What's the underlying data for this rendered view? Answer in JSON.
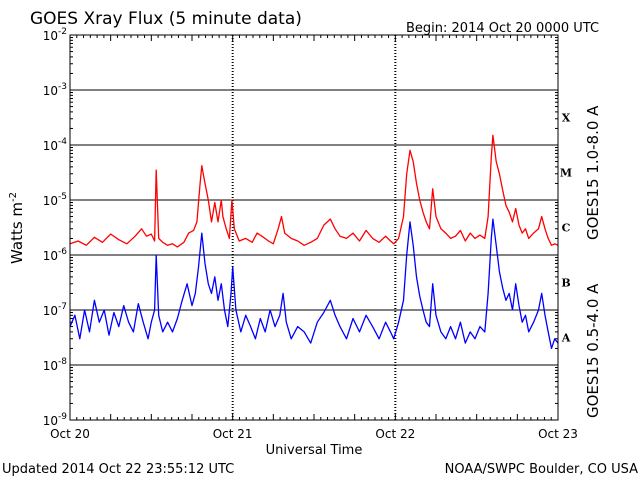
{
  "header": {
    "title": "GOES Xray Flux (5 minute data)",
    "begin": "Begin:  2014 Oct 20 0000 UTC"
  },
  "footer": {
    "updated": "Updated 2014 Oct 22 23:55:12 UTC",
    "source": "NOAA/SWPC Boulder, CO USA"
  },
  "colors": {
    "long": "#ff0000",
    "short": "#0000ff",
    "axis": "#000000"
  },
  "chart_data": {
    "type": "line",
    "title": "GOES Xray Flux (5 minute data)",
    "xlabel": "Universal Time",
    "ylabel": "Watts m",
    "ylabel_sup": "-2",
    "yscale": "log",
    "ylim": [
      1e-09,
      0.01
    ],
    "x_unit": "days since 2014 Oct 20 0000 UTC",
    "xlim": [
      0,
      3
    ],
    "x_ticks": [
      {
        "x": 0,
        "label": "Oct 20"
      },
      {
        "x": 1,
        "label": "Oct 21"
      },
      {
        "x": 2,
        "label": "Oct 22"
      },
      {
        "x": 3,
        "label": "Oct 23"
      }
    ],
    "y_ticks": [
      {
        "exp": -2,
        "base": "10",
        "sup": "-2"
      },
      {
        "exp": -3,
        "base": "10",
        "sup": "-3"
      },
      {
        "exp": -4,
        "base": "10",
        "sup": "-4"
      },
      {
        "exp": -5,
        "base": "10",
        "sup": "-5"
      },
      {
        "exp": -6,
        "base": "10",
        "sup": "-6"
      },
      {
        "exp": -7,
        "base": "10",
        "sup": "-7"
      },
      {
        "exp": -8,
        "base": "10",
        "sup": "-8"
      },
      {
        "exp": -9,
        "base": "10",
        "sup": "-9"
      }
    ],
    "gridlines": [
      -3,
      -4,
      -5,
      -6,
      -7,
      -8
    ],
    "flare_classes": [
      {
        "label": "X",
        "exp": -3.5
      },
      {
        "label": "M",
        "exp": -4.5
      },
      {
        "label": "C",
        "exp": -5.5
      },
      {
        "label": "B",
        "exp": -6.5
      },
      {
        "label": "A",
        "exp": -7.5
      }
    ],
    "series": [
      {
        "name": "GOES15 1.0-8.0 A",
        "color": "#ff0000",
        "points": [
          [
            0.0,
            1.6e-06
          ],
          [
            0.05,
            1.8e-06
          ],
          [
            0.1,
            1.5e-06
          ],
          [
            0.15,
            2.1e-06
          ],
          [
            0.2,
            1.7e-06
          ],
          [
            0.25,
            2.4e-06
          ],
          [
            0.3,
            1.9e-06
          ],
          [
            0.35,
            1.6e-06
          ],
          [
            0.4,
            2.2e-06
          ],
          [
            0.44,
            3e-06
          ],
          [
            0.47,
            2.2e-06
          ],
          [
            0.5,
            2.4e-06
          ],
          [
            0.52,
            1.8e-06
          ],
          [
            0.53,
            3.5e-05
          ],
          [
            0.545,
            2e-06
          ],
          [
            0.57,
            1.7e-06
          ],
          [
            0.6,
            1.5e-06
          ],
          [
            0.63,
            1.6e-06
          ],
          [
            0.66,
            1.4e-06
          ],
          [
            0.7,
            1.7e-06
          ],
          [
            0.73,
            2.5e-06
          ],
          [
            0.76,
            2.8e-06
          ],
          [
            0.78,
            4e-06
          ],
          [
            0.8,
            2e-05
          ],
          [
            0.81,
            4.2e-05
          ],
          [
            0.83,
            2e-05
          ],
          [
            0.85,
            1e-05
          ],
          [
            0.87,
            4e-06
          ],
          [
            0.89,
            9e-06
          ],
          [
            0.91,
            4e-06
          ],
          [
            0.93,
            1e-05
          ],
          [
            0.94,
            5e-06
          ],
          [
            0.96,
            3e-06
          ],
          [
            0.98,
            2e-06
          ],
          [
            0.995,
            1e-05
          ],
          [
            1.01,
            3e-06
          ],
          [
            1.04,
            1.8e-06
          ],
          [
            1.08,
            2e-06
          ],
          [
            1.12,
            1.7e-06
          ],
          [
            1.15,
            2.5e-06
          ],
          [
            1.18,
            2.2e-06
          ],
          [
            1.22,
            1.8e-06
          ],
          [
            1.25,
            1.6e-06
          ],
          [
            1.28,
            3e-06
          ],
          [
            1.3,
            5e-06
          ],
          [
            1.32,
            2.5e-06
          ],
          [
            1.36,
            2e-06
          ],
          [
            1.4,
            1.8e-06
          ],
          [
            1.44,
            1.5e-06
          ],
          [
            1.48,
            1.7e-06
          ],
          [
            1.52,
            2e-06
          ],
          [
            1.56,
            3.5e-06
          ],
          [
            1.6,
            4.5e-06
          ],
          [
            1.63,
            3e-06
          ],
          [
            1.66,
            2.2e-06
          ],
          [
            1.7,
            2e-06
          ],
          [
            1.74,
            2.5e-06
          ],
          [
            1.78,
            1.8e-06
          ],
          [
            1.82,
            2.8e-06
          ],
          [
            1.86,
            2e-06
          ],
          [
            1.9,
            1.7e-06
          ],
          [
            1.94,
            2.2e-06
          ],
          [
            1.97,
            1.8e-06
          ],
          [
            1.99,
            1.6e-06
          ],
          [
            2.02,
            2e-06
          ],
          [
            2.05,
            5e-06
          ],
          [
            2.07,
            3e-05
          ],
          [
            2.09,
            8e-05
          ],
          [
            2.11,
            5e-05
          ],
          [
            2.13,
            2e-05
          ],
          [
            2.15,
            1e-05
          ],
          [
            2.17,
            6e-06
          ],
          [
            2.19,
            4e-06
          ],
          [
            2.21,
            3e-06
          ],
          [
            2.23,
            1.6e-05
          ],
          [
            2.25,
            5e-06
          ],
          [
            2.28,
            3e-06
          ],
          [
            2.31,
            2.5e-06
          ],
          [
            2.34,
            2e-06
          ],
          [
            2.37,
            2.2e-06
          ],
          [
            2.4,
            2.8e-06
          ],
          [
            2.43,
            1.8e-06
          ],
          [
            2.46,
            2.5e-06
          ],
          [
            2.49,
            2e-06
          ],
          [
            2.52,
            2.3e-06
          ],
          [
            2.55,
            2e-06
          ],
          [
            2.57,
            5e-06
          ],
          [
            2.59,
            6e-05
          ],
          [
            2.6,
            0.00015
          ],
          [
            2.62,
            5e-05
          ],
          [
            2.64,
            3e-05
          ],
          [
            2.66,
            1.5e-05
          ],
          [
            2.68,
            8e-06
          ],
          [
            2.7,
            6e-06
          ],
          [
            2.72,
            4e-06
          ],
          [
            2.74,
            7e-06
          ],
          [
            2.76,
            3.5e-06
          ],
          [
            2.78,
            2.5e-06
          ],
          [
            2.8,
            3e-06
          ],
          [
            2.82,
            2e-06
          ],
          [
            2.85,
            2.5e-06
          ],
          [
            2.88,
            3e-06
          ],
          [
            2.9,
            5e-06
          ],
          [
            2.92,
            3e-06
          ],
          [
            2.94,
            2e-06
          ],
          [
            2.96,
            1.5e-06
          ],
          [
            2.98,
            1.6e-06
          ],
          [
            3.0,
            1.5e-06
          ]
        ]
      },
      {
        "name": "GOES15 0.5-4.0 A",
        "color": "#0000ff",
        "points": [
          [
            0.0,
            5e-08
          ],
          [
            0.03,
            8e-08
          ],
          [
            0.06,
            3e-08
          ],
          [
            0.09,
            1e-07
          ],
          [
            0.12,
            4e-08
          ],
          [
            0.15,
            1.5e-07
          ],
          [
            0.18,
            6e-08
          ],
          [
            0.21,
            1e-07
          ],
          [
            0.24,
            3.5e-08
          ],
          [
            0.27,
            9e-08
          ],
          [
            0.3,
            5e-08
          ],
          [
            0.33,
            1.2e-07
          ],
          [
            0.36,
            6e-08
          ],
          [
            0.39,
            4e-08
          ],
          [
            0.42,
            1.3e-07
          ],
          [
            0.45,
            6e-08
          ],
          [
            0.48,
            3e-08
          ],
          [
            0.5,
            6e-08
          ],
          [
            0.52,
            1e-07
          ],
          [
            0.53,
            1e-06
          ],
          [
            0.545,
            8e-08
          ],
          [
            0.57,
            4e-08
          ],
          [
            0.6,
            6e-08
          ],
          [
            0.63,
            4e-08
          ],
          [
            0.66,
            7e-08
          ],
          [
            0.69,
            1.5e-07
          ],
          [
            0.72,
            3e-07
          ],
          [
            0.75,
            1.2e-07
          ],
          [
            0.77,
            2e-07
          ],
          [
            0.79,
            6e-07
          ],
          [
            0.81,
            2.5e-06
          ],
          [
            0.83,
            7e-07
          ],
          [
            0.85,
            3e-07
          ],
          [
            0.87,
            2e-07
          ],
          [
            0.89,
            4e-07
          ],
          [
            0.91,
            1.5e-07
          ],
          [
            0.93,
            3e-07
          ],
          [
            0.95,
            1e-07
          ],
          [
            0.97,
            5e-08
          ],
          [
            0.99,
            2e-07
          ],
          [
            1.0,
            6e-07
          ],
          [
            1.02,
            1e-07
          ],
          [
            1.05,
            4e-08
          ],
          [
            1.08,
            8e-08
          ],
          [
            1.11,
            5e-08
          ],
          [
            1.14,
            3e-08
          ],
          [
            1.17,
            7e-08
          ],
          [
            1.2,
            4e-08
          ],
          [
            1.23,
            1e-07
          ],
          [
            1.26,
            5e-08
          ],
          [
            1.29,
            8e-08
          ],
          [
            1.31,
            2e-07
          ],
          [
            1.33,
            6e-08
          ],
          [
            1.36,
            3e-08
          ],
          [
            1.4,
            5e-08
          ],
          [
            1.44,
            4e-08
          ],
          [
            1.48,
            2.5e-08
          ],
          [
            1.52,
            6e-08
          ],
          [
            1.56,
            9e-08
          ],
          [
            1.6,
            1.5e-07
          ],
          [
            1.63,
            8e-08
          ],
          [
            1.66,
            5e-08
          ],
          [
            1.7,
            3e-08
          ],
          [
            1.74,
            7e-08
          ],
          [
            1.78,
            4e-08
          ],
          [
            1.82,
            8e-08
          ],
          [
            1.86,
            5e-08
          ],
          [
            1.9,
            3e-08
          ],
          [
            1.94,
            6e-08
          ],
          [
            1.97,
            4e-08
          ],
          [
            1.99,
            3e-08
          ],
          [
            2.02,
            6e-08
          ],
          [
            2.05,
            1.5e-07
          ],
          [
            2.07,
            1e-06
          ],
          [
            2.09,
            4e-06
          ],
          [
            2.11,
            1.5e-06
          ],
          [
            2.13,
            4e-07
          ],
          [
            2.15,
            1.8e-07
          ],
          [
            2.17,
            1e-07
          ],
          [
            2.19,
            6e-08
          ],
          [
            2.21,
            5e-08
          ],
          [
            2.23,
            3e-07
          ],
          [
            2.25,
            8e-08
          ],
          [
            2.28,
            4e-08
          ],
          [
            2.31,
            3e-08
          ],
          [
            2.34,
            5e-08
          ],
          [
            2.37,
            3e-08
          ],
          [
            2.4,
            6e-08
          ],
          [
            2.43,
            2.5e-08
          ],
          [
            2.46,
            4e-08
          ],
          [
            2.49,
            3e-08
          ],
          [
            2.52,
            5e-08
          ],
          [
            2.55,
            4e-08
          ],
          [
            2.57,
            2e-07
          ],
          [
            2.59,
            2e-06
          ],
          [
            2.6,
            4.5e-06
          ],
          [
            2.62,
            1.5e-06
          ],
          [
            2.64,
            5e-07
          ],
          [
            2.66,
            2.5e-07
          ],
          [
            2.68,
            1.5e-07
          ],
          [
            2.7,
            2e-07
          ],
          [
            2.72,
            1e-07
          ],
          [
            2.74,
            3e-07
          ],
          [
            2.76,
            1.2e-07
          ],
          [
            2.78,
            6e-08
          ],
          [
            2.8,
            8e-08
          ],
          [
            2.82,
            4e-08
          ],
          [
            2.85,
            6e-08
          ],
          [
            2.88,
            1e-07
          ],
          [
            2.9,
            2e-07
          ],
          [
            2.92,
            8e-08
          ],
          [
            2.94,
            4e-08
          ],
          [
            2.96,
            2e-08
          ],
          [
            2.98,
            3e-08
          ],
          [
            3.0,
            2.5e-08
          ]
        ]
      }
    ]
  }
}
